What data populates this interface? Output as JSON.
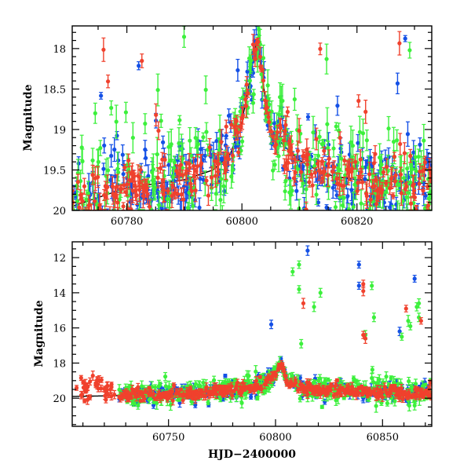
{
  "chart_data": [
    {
      "id": "top",
      "type": "scatter",
      "xlabel": "",
      "ylabel": "Magnitude",
      "xlim": [
        60770.5,
        60833
      ],
      "ylim": [
        20,
        17.72
      ],
      "y_inverted": true,
      "xticks": [
        60780,
        60800,
        60820
      ],
      "yticks": [
        18,
        18.5,
        19,
        19.5,
        20
      ],
      "ytick_labels": [
        "18",
        "18.5",
        "19",
        "19.5",
        "20"
      ],
      "colors": {
        "blue": "#1450e6",
        "green": "#3cf03c",
        "red": "#f0412d",
        "model": "#000000"
      },
      "model_curve": {
        "x": [
          60770.5,
          60780,
          60790,
          60795,
          60798,
          60800,
          60801.5,
          60802.5,
          60803.2,
          60804,
          60805,
          60806,
          60808,
          60810,
          60813,
          60816,
          60820,
          60833
        ],
        "y": [
          19.95,
          19.72,
          19.62,
          19.5,
          19.3,
          18.9,
          18.35,
          17.92,
          18.1,
          18.6,
          18.98,
          19.1,
          19.25,
          19.38,
          19.5,
          19.58,
          19.62,
          19.67
        ]
      }
    },
    {
      "id": "bottom",
      "type": "scatter",
      "xlabel": "HJD−2400000",
      "ylabel": "Magnitude",
      "xlim": [
        60705,
        60873
      ],
      "ylim": [
        21.6,
        11.1
      ],
      "y_inverted": true,
      "xticks": [
        60750,
        60800,
        60850
      ],
      "yticks": [
        12,
        14,
        16,
        18,
        20
      ],
      "ytick_labels": [
        "12",
        "14",
        "16",
        "18",
        "20"
      ],
      "colors": {
        "blue": "#1450e6",
        "green": "#3cf03c",
        "red": "#f0412d",
        "model": "#000000"
      },
      "model_curve": {
        "x": [
          60705,
          60750,
          60780,
          60795,
          60800,
          60802.5,
          60805,
          60810,
          60820,
          60873
        ],
        "y": [
          19.9,
          19.8,
          19.55,
          19.1,
          18.6,
          18.0,
          18.9,
          19.3,
          19.55,
          19.7
        ]
      },
      "outliers": {
        "blue": [
          [
            60815,
            11.6
          ],
          [
            60839,
            12.4
          ],
          [
            60839,
            13.6
          ],
          [
            60865,
            13.2
          ],
          [
            60798,
            15.8
          ],
          [
            60858,
            16.2
          ]
        ],
        "green": [
          [
            60811,
            12.4
          ],
          [
            60808,
            12.8
          ],
          [
            60818,
            14.8
          ],
          [
            60821,
            14.0
          ],
          [
            60811,
            13.8
          ],
          [
            60845,
            13.6
          ],
          [
            60846,
            15.4
          ],
          [
            60867,
            14.6
          ],
          [
            60867,
            15.4
          ],
          [
            60862,
            15.6
          ],
          [
            60863,
            15.9
          ],
          [
            60866,
            14.8
          ],
          [
            60859,
            16.5
          ],
          [
            60812,
            16.9
          ],
          [
            60842,
            16.4
          ]
        ],
        "red": [
          [
            60813,
            14.6
          ],
          [
            60841,
            13.5
          ],
          [
            60841,
            13.9
          ],
          [
            60842,
            16.6
          ],
          [
            60841,
            16.4
          ],
          [
            60861,
            14.9
          ],
          [
            60868,
            15.6
          ]
        ]
      }
    }
  ]
}
